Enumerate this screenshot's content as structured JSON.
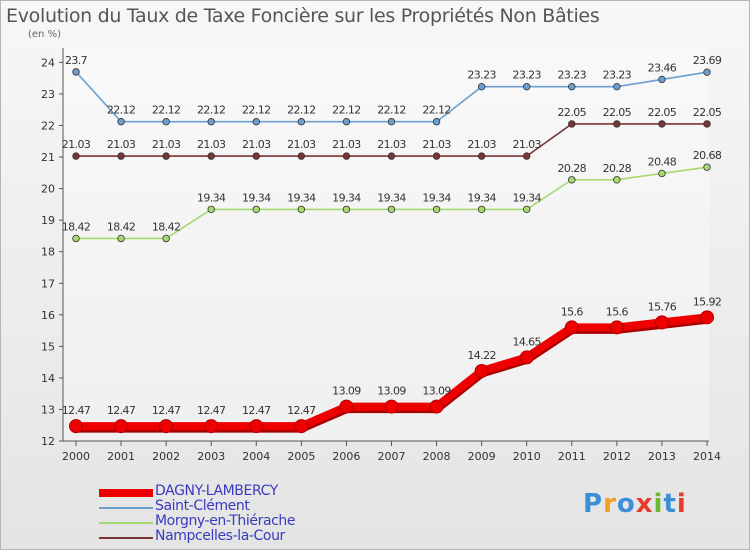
{
  "header": {
    "title": "Evolution du Taux de Taxe Foncière sur les Propriétés Non Bâties",
    "unit": "(en %)"
  },
  "chart_data": {
    "type": "line",
    "title": "Evolution du Taux de Taxe Foncière sur les Propriétés Non Bâties",
    "ylabel": "(en %)",
    "xlabel": "",
    "ylim": [
      12,
      24
    ],
    "yticks": [
      12,
      13,
      14,
      15,
      16,
      17,
      18,
      19,
      20,
      21,
      22,
      23,
      24
    ],
    "grid": false,
    "legend_position": "bottom-left",
    "x": [
      "2000",
      "2001",
      "2002",
      "2003",
      "2004",
      "2005",
      "2006",
      "2007",
      "2008",
      "2009",
      "2010",
      "2011",
      "2012",
      "2013",
      "2014"
    ],
    "series": [
      {
        "name": "DAGNY-LAMBERCY",
        "color": "#ee0000",
        "bold": true,
        "values": [
          12.47,
          12.47,
          12.47,
          12.47,
          12.47,
          12.47,
          13.09,
          13.09,
          13.09,
          14.22,
          14.65,
          15.6,
          15.6,
          15.76,
          15.92
        ],
        "labels": [
          "12.47",
          "12.47",
          "12.47",
          "12.47",
          "12.47",
          "12.47",
          "13.09",
          "13.09",
          "13.09",
          "14.22",
          "14.65",
          "15.6",
          "15.6",
          "15.76",
          "15.92"
        ]
      },
      {
        "name": "Saint-Clément",
        "color": "#6a9fcf",
        "values": [
          23.7,
          22.12,
          22.12,
          22.12,
          22.12,
          22.12,
          22.12,
          22.12,
          22.12,
          23.23,
          23.23,
          23.23,
          23.23,
          23.46,
          23.69
        ],
        "labels": [
          "23.7",
          "22.12",
          "22.12",
          "22.12",
          "22.12",
          "22.12",
          "22.12",
          "22.12",
          "22.12",
          "23.23",
          "23.23",
          "23.23",
          "23.23",
          "23.46",
          "23.69"
        ]
      },
      {
        "name": "Morgny-en-Thiérache",
        "color": "#a6d970",
        "values": [
          18.42,
          18.42,
          18.42,
          19.34,
          19.34,
          19.34,
          19.34,
          19.34,
          19.34,
          19.34,
          19.34,
          20.28,
          20.28,
          20.48,
          20.68
        ],
        "labels": [
          "18.42",
          "18.42",
          "18.42",
          "19.34",
          "19.34",
          "19.34",
          "19.34",
          "19.34",
          "19.34",
          "19.34",
          "19.34",
          "20.28",
          "20.28",
          "20.48",
          "20.68"
        ]
      },
      {
        "name": "Nampcelles-la-Cour",
        "color": "#7a3535",
        "values": [
          21.03,
          21.03,
          21.03,
          21.03,
          21.03,
          21.03,
          21.03,
          21.03,
          21.03,
          21.03,
          21.03,
          22.05,
          22.05,
          22.05,
          22.05
        ],
        "labels": [
          "21.03",
          "21.03",
          "21.03",
          "21.03",
          "21.03",
          "21.03",
          "21.03",
          "21.03",
          "21.03",
          "21.03",
          "21.03",
          "22.05",
          "22.05",
          "22.05",
          "22.05"
        ]
      }
    ]
  },
  "logo": {
    "text": "Proxiti",
    "colors": [
      "#3a8fd6",
      "#f0a020",
      "#3a8fd6",
      "#e63c2e",
      "#6ab82e",
      "#3a8fd6",
      "#e63c2e"
    ]
  }
}
